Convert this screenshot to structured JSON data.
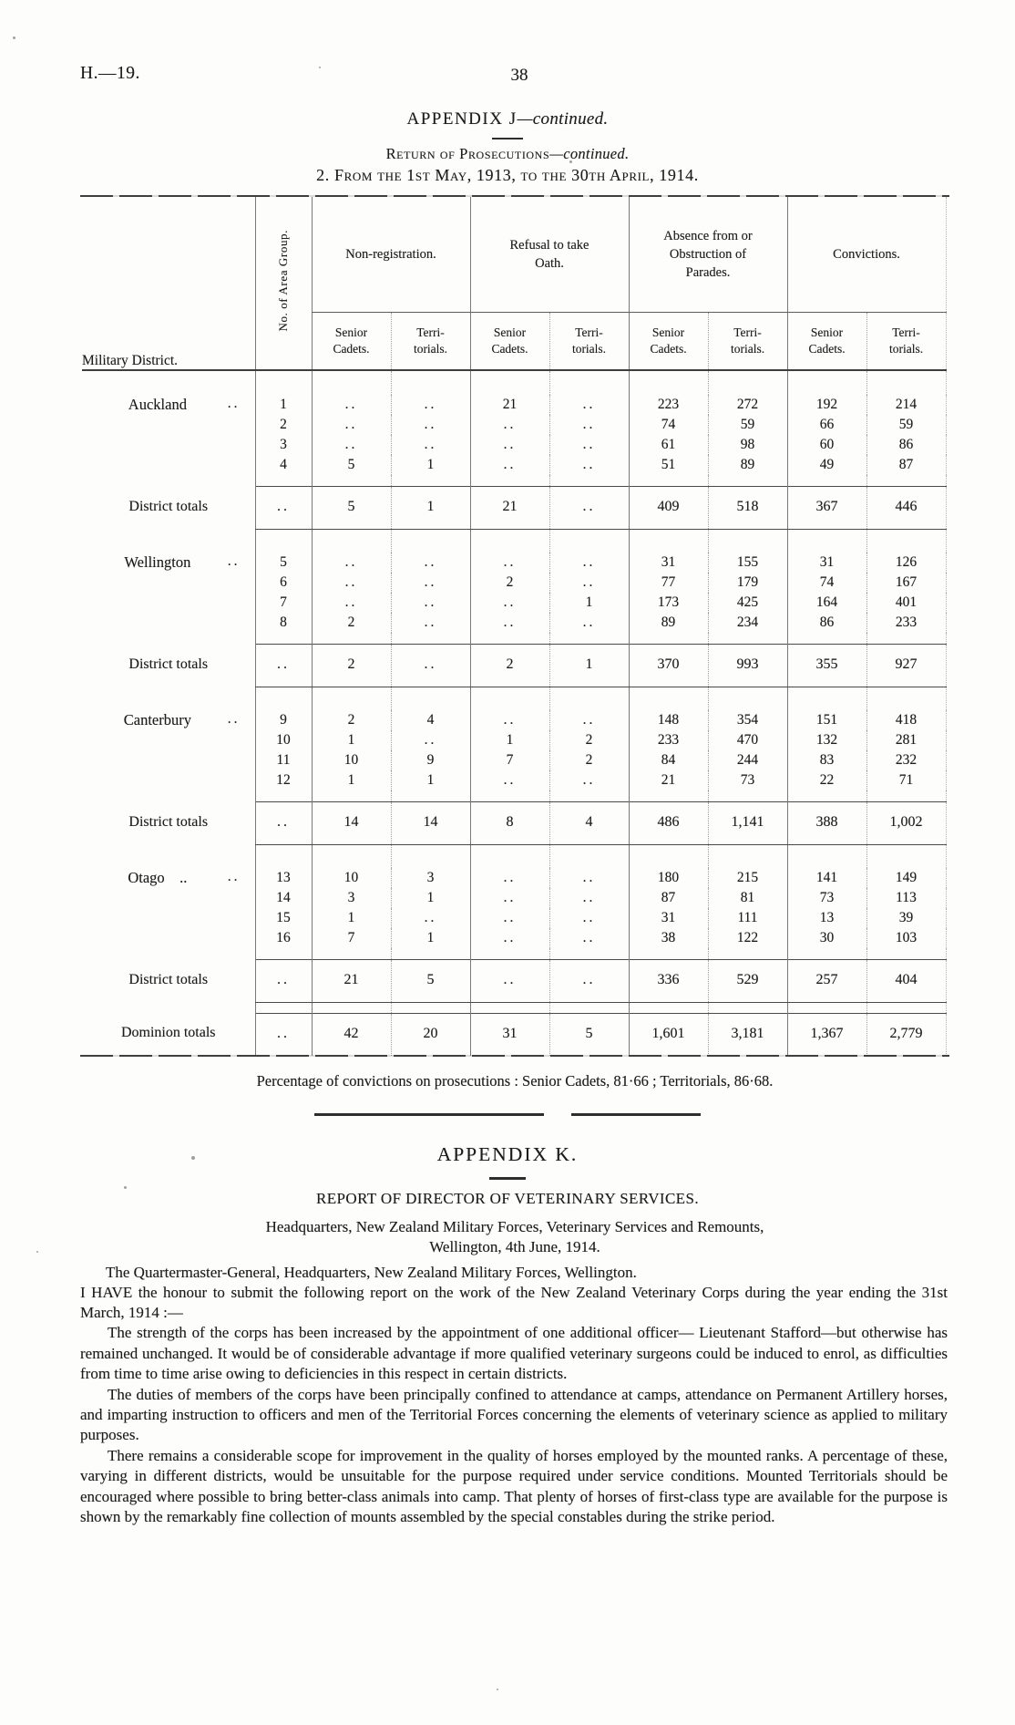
{
  "page": {
    "doc_ref": "H.—19.",
    "page_number": "38"
  },
  "appendix_j": {
    "title_main": "APPENDIX J",
    "title_cont": "—continued.",
    "subtitle_main": "Return of Prosecutions",
    "subtitle_cont": "—continued.",
    "period_line": "2. From the 1st May, 1913, to the 30th April, 1914."
  },
  "table": {
    "col_headers": {
      "district": "Military District.",
      "area_group": "No. of Area Group.",
      "groups": [
        "Non-registration.",
        "Refusal to take\nOath.",
        "Absence from or\nObstruction of\nParades.",
        "Convictions."
      ],
      "sub_senior": "Senior\nCadets.",
      "sub_territorials": "Terri-\ntorials."
    },
    "sections": [
      {
        "district": "Auckland",
        "leader": "..",
        "rows": [
          {
            "group": "1",
            "cells": [
              "..",
              "..",
              "21",
              "..",
              "223",
              "272",
              "192",
              "214"
            ]
          },
          {
            "group": "2",
            "cells": [
              "..",
              "..",
              "..",
              "..",
              "74",
              "59",
              "66",
              "59"
            ]
          },
          {
            "group": "3",
            "cells": [
              "..",
              "..",
              "..",
              "..",
              "61",
              "98",
              "60",
              "86"
            ]
          },
          {
            "group": "4",
            "cells": [
              "5",
              "1",
              "..",
              "..",
              "51",
              "89",
              "49",
              "87"
            ]
          }
        ],
        "totals": {
          "label": "District totals",
          "group": "..",
          "cells": [
            "5",
            "1",
            "21",
            "..",
            "409",
            "518",
            "367",
            "446"
          ]
        }
      },
      {
        "district": "Wellington",
        "leader": "..",
        "rows": [
          {
            "group": "5",
            "cells": [
              "..",
              "..",
              "..",
              "..",
              "31",
              "155",
              "31",
              "126"
            ]
          },
          {
            "group": "6",
            "cells": [
              "..",
              "..",
              "2",
              "..",
              "77",
              "179",
              "74",
              "167"
            ]
          },
          {
            "group": "7",
            "cells": [
              "..",
              "..",
              "..",
              "1",
              "173",
              "425",
              "164",
              "401"
            ]
          },
          {
            "group": "8",
            "cells": [
              "2",
              "..",
              "..",
              "..",
              "89",
              "234",
              "86",
              "233"
            ]
          }
        ],
        "totals": {
          "label": "District totals",
          "group": "..",
          "cells": [
            "2",
            "..",
            "2",
            "1",
            "370",
            "993",
            "355",
            "927"
          ]
        }
      },
      {
        "district": "Canterbury",
        "leader": "..",
        "rows": [
          {
            "group": "9",
            "cells": [
              "2",
              "4",
              "..",
              "..",
              "148",
              "354",
              "151",
              "418"
            ]
          },
          {
            "group": "10",
            "cells": [
              "1",
              "..",
              "1",
              "2",
              "233",
              "470",
              "132",
              "281"
            ]
          },
          {
            "group": "11",
            "cells": [
              "10",
              "9",
              "7",
              "2",
              "84",
              "244",
              "83",
              "232"
            ]
          },
          {
            "group": "12",
            "cells": [
              "1",
              "1",
              "..",
              "..",
              "21",
              "73",
              "22",
              "71"
            ]
          }
        ],
        "totals": {
          "label": "District totals",
          "group": "..",
          "cells": [
            "14",
            "14",
            "8",
            "4",
            "486",
            "1,141",
            "388",
            "1,002"
          ]
        }
      },
      {
        "district": "Otago ..",
        "leader": "..",
        "rows": [
          {
            "group": "13",
            "cells": [
              "10",
              "3",
              "..",
              "..",
              "180",
              "215",
              "141",
              "149"
            ]
          },
          {
            "group": "14",
            "cells": [
              "3",
              "1",
              "..",
              "..",
              "87",
              "81",
              "73",
              "113"
            ]
          },
          {
            "group": "15",
            "cells": [
              "1",
              "..",
              "..",
              "..",
              "31",
              "111",
              "13",
              "39"
            ]
          },
          {
            "group": "16",
            "cells": [
              "7",
              "1",
              "..",
              "..",
              "38",
              "122",
              "30",
              "103"
            ]
          }
        ],
        "totals": {
          "label": "District totals",
          "group": "..",
          "cells": [
            "21",
            "5",
            "..",
            "..",
            "336",
            "529",
            "257",
            "404"
          ]
        }
      }
    ],
    "dominion_totals": {
      "label": "Dominion totals",
      "group": "..",
      "cells": [
        "42",
        "20",
        "31",
        "5",
        "1,601",
        "3,181",
        "1,367",
        "2,779"
      ]
    }
  },
  "percentage_note": "Percentage of convictions on prosecutions :  Senior Cadets, 81·66 ;  Territorials, 86·68.",
  "appendix_k": {
    "title": "APPENDIX K.",
    "report_title": "REPORT OF DIRECTOR OF VETERINARY SERVICES.",
    "address_line1": "Headquarters, New Zealand Military Forces, Veterinary Services and Remounts,",
    "address_line2": "Wellington, 4th June, 1914.",
    "salutation": "The Quartermaster-General, Headquarters, New Zealand Military Forces, Wellington.",
    "paragraphs": [
      "I HAVE the honour to submit the following report on the work of the New Zealand Veterinary Corps during the year ending the 31st March, 1914 :—",
      "The strength of the corps has been increased by the appointment of one additional officer— Lieutenant Stafford—but otherwise has remained unchanged.  It would be of considerable advantage if more qualified veterinary surgeons could be induced to enrol, as difficulties from time to time arise owing to deficiencies in this respect in certain districts.",
      "The duties of members of the corps have been principally confined to attendance at camps, attendance on Permanent Artillery horses, and imparting instruction to officers and men of the Territorial Forces concerning the elements of veterinary science as applied to military purposes.",
      "There remains a considerable scope for improvement in the quality of horses employed by the mounted ranks.  A percentage of these, varying in different districts, would be unsuitable for the purpose required under service conditions.  Mounted Territorials should be encouraged where possible to bring better-class animals into camp.  That plenty of horses of first-class type are available for the purpose is shown by the remarkably fine collection of mounts assembled by the special constables during the strike period."
    ]
  }
}
